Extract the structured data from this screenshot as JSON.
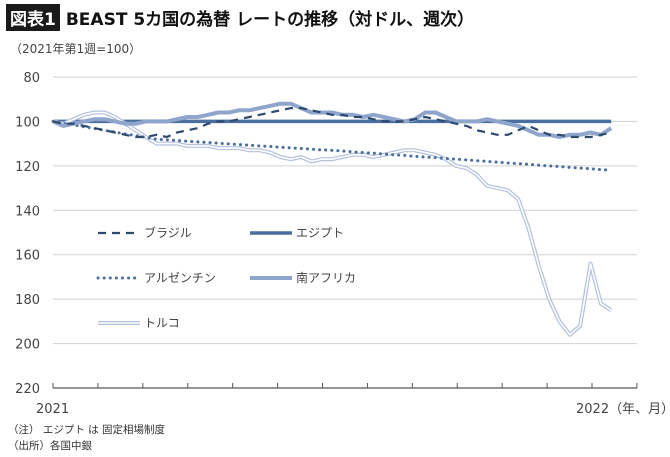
{
  "header": {
    "badge": "図表1",
    "title": "BEAST 5カ国の為替 レートの推移（対ドル、週次）",
    "subtitle": "（2021年第1週=100）"
  },
  "notes": [
    "（注） エジプト は 固定相場制度",
    "（出所）各国中銀"
  ],
  "chart_data": {
    "type": "line",
    "title": "BEAST 5カ国の為替 レートの推移（対ドル、週次）",
    "ylabel": "（2021年第1週=100）",
    "ylim": [
      80,
      220
    ],
    "y_inverted": true,
    "yticks": [
      "80",
      "100",
      "120",
      "140",
      "160",
      "180",
      "200",
      "220"
    ],
    "xtick_labels": {
      "start": "2021",
      "end": "2022（年、月）"
    },
    "x_ticks": "monthly",
    "grid": "horizontal",
    "legend_position": "inside-left",
    "x": [
      "2021-01-01",
      "2021-01-08",
      "2021-01-15",
      "2021-01-22",
      "2021-01-29",
      "2021-02-05",
      "2021-02-12",
      "2021-02-19",
      "2021-02-26",
      "2021-03-05",
      "2021-03-12",
      "2021-03-19",
      "2021-03-26",
      "2021-04-02",
      "2021-04-09",
      "2021-04-16",
      "2021-04-23",
      "2021-04-30",
      "2021-05-07",
      "2021-05-14",
      "2021-05-21",
      "2021-05-28",
      "2021-06-04",
      "2021-06-11",
      "2021-06-18",
      "2021-06-25",
      "2021-07-02",
      "2021-07-09",
      "2021-07-16",
      "2021-07-23",
      "2021-07-30",
      "2021-08-06",
      "2021-08-13",
      "2021-08-20",
      "2021-08-27",
      "2021-09-03",
      "2021-09-10",
      "2021-09-17",
      "2021-09-24",
      "2021-10-01",
      "2021-10-08",
      "2021-10-15",
      "2021-10-22",
      "2021-10-29",
      "2021-11-05",
      "2021-11-12",
      "2021-11-19",
      "2021-11-26",
      "2021-12-03",
      "2021-12-10",
      "2021-12-17",
      "2021-12-24",
      "2021-12-31",
      "2022-01-07",
      "2022-01-14"
    ],
    "series": [
      {
        "name": "ブラジル",
        "style": "dashed",
        "color": "#2e4a6e",
        "values": [
          100,
          101,
          101,
          102,
          103,
          104,
          105,
          106,
          107,
          107,
          106,
          107,
          105,
          104,
          103,
          101,
          100,
          100,
          99,
          98,
          97,
          96,
          95,
          94,
          94,
          95,
          96,
          97,
          97,
          98,
          98,
          99,
          100,
          100,
          100,
          99,
          98,
          99,
          100,
          101,
          102,
          104,
          105,
          106,
          106,
          104,
          102,
          104,
          106,
          106,
          107,
          107,
          107,
          106,
          105
        ]
      },
      {
        "name": "エジプト",
        "style": "thick-solid",
        "color": "#4a6f9e",
        "values": [
          100,
          100,
          100,
          100,
          100,
          100,
          100,
          100,
          100,
          100,
          100,
          100,
          100,
          100,
          100,
          100,
          100,
          100,
          100,
          100,
          100,
          100,
          100,
          100,
          100,
          100,
          100,
          100,
          100,
          100,
          100,
          100,
          100,
          100,
          100,
          100,
          100,
          100,
          100,
          100,
          100,
          100,
          100,
          100,
          100,
          100,
          100,
          100,
          100,
          100,
          100,
          100,
          100,
          100,
          100
        ]
      },
      {
        "name": "アルゼンチン",
        "style": "dotted",
        "color": "#4a6f9e",
        "values": [
          100,
          100.8,
          101.6,
          102.4,
          103.2,
          104,
          104.8,
          105.6,
          106.4,
          107.2,
          108,
          108.3,
          108.6,
          108.9,
          109.2,
          109.5,
          109.8,
          110.1,
          110.4,
          110.7,
          111,
          111.3,
          111.6,
          111.9,
          112.2,
          112.5,
          112.8,
          113,
          113.3,
          113.7,
          114,
          114.3,
          114.7,
          115,
          115.3,
          115.7,
          116,
          116.3,
          116.7,
          117,
          117.3,
          117.7,
          118,
          118.3,
          118.7,
          119,
          119.3,
          119.7,
          120,
          120.3,
          120.7,
          121,
          121.3,
          121.7,
          122
        ]
      },
      {
        "name": "南アフリカ",
        "style": "thick-light",
        "color": "#8fa5cc",
        "values": [
          100,
          102,
          101,
          100,
          99,
          99,
          100,
          101,
          101,
          100,
          100,
          100,
          99,
          98,
          98,
          97,
          96,
          96,
          95,
          95,
          94,
          93,
          92,
          92,
          94,
          96,
          96,
          96,
          97,
          97,
          98,
          97,
          98,
          99,
          100,
          99,
          96,
          96,
          98,
          100,
          100,
          100,
          99,
          100,
          101,
          102,
          104,
          106,
          106,
          107,
          106,
          106,
          105,
          106,
          103
        ]
      },
      {
        "name": "トルコ",
        "style": "double",
        "color": "#b4c0dc",
        "values": [
          100,
          101,
          99,
          97,
          96,
          96,
          98,
          101,
          104,
          107,
          110,
          110,
          110,
          111,
          111,
          111,
          112,
          112,
          112,
          113,
          113,
          114,
          116,
          117,
          116,
          118,
          117,
          117,
          116,
          115,
          115,
          116,
          115,
          114,
          113,
          113,
          114,
          115,
          117,
          120,
          121,
          124,
          129,
          130,
          131,
          135,
          148,
          165,
          180,
          190,
          196,
          192,
          164,
          182,
          185
        ]
      }
    ]
  }
}
